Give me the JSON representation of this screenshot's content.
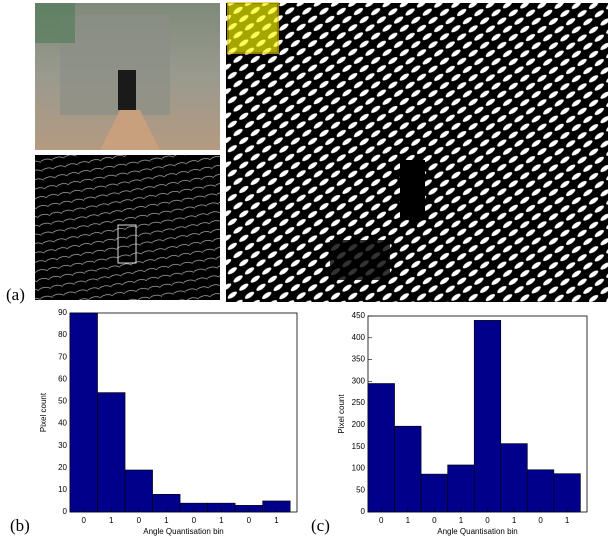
{
  "panel_a": {
    "label": "(a)"
  },
  "chart_data": [
    {
      "type": "bar",
      "label": "(b)",
      "xlabel": "Angle Quantisation bin",
      "ylabel": "Pixel count",
      "categories": [
        "0",
        "1",
        "0",
        "1",
        "0",
        "1",
        "0",
        "1"
      ],
      "values": [
        90,
        54,
        19,
        8,
        4,
        4,
        3,
        5
      ],
      "color": "#00008b",
      "ylim": [
        0,
        90
      ],
      "yticks": [
        0,
        10,
        20,
        30,
        40,
        50,
        60,
        70,
        80,
        90
      ]
    },
    {
      "type": "bar",
      "label": "(c)",
      "xlabel": "Angle Quantisation bin",
      "ylabel": "Pixel count",
      "categories": [
        "0",
        "1",
        "0",
        "1",
        "0",
        "1",
        "0",
        "1"
      ],
      "values": [
        295,
        197,
        87,
        108,
        440,
        157,
        97,
        88
      ],
      "color": "#00008b",
      "ylim": [
        0,
        450
      ],
      "yticks": [
        0,
        50,
        100,
        150,
        200,
        250,
        300,
        350,
        400,
        450
      ]
    }
  ]
}
